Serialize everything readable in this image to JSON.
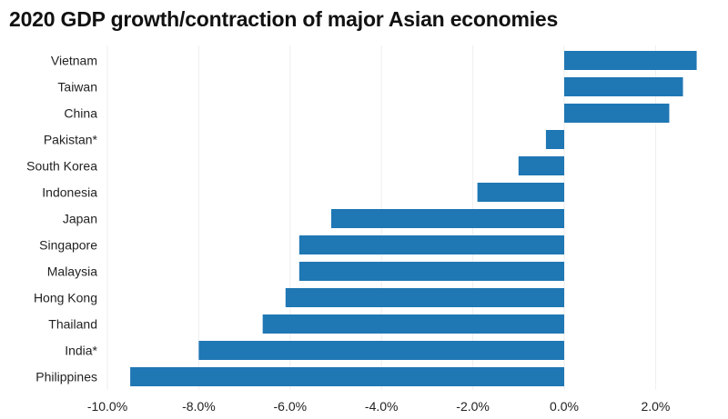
{
  "chart_data": {
    "type": "bar",
    "orientation": "horizontal",
    "title": "2020 GDP growth/contraction of major Asian economies",
    "xlabel": "",
    "ylabel": "",
    "categories": [
      "Vietnam",
      "Taiwan",
      "China",
      "Pakistan*",
      "South Korea",
      "Indonesia",
      "Japan",
      "Singapore",
      "Malaysia",
      "Hong Kong",
      "Thailand",
      "India*",
      "Philippines"
    ],
    "values": [
      2.9,
      2.6,
      2.3,
      -0.4,
      -1.0,
      -1.9,
      -5.1,
      -5.8,
      -5.8,
      -6.1,
      -6.6,
      -8.0,
      -9.5
    ],
    "xlim": [
      -10,
      3.5
    ],
    "x_ticks": [
      -10,
      -8,
      -6,
      -4,
      -2,
      0,
      2
    ],
    "x_tick_labels": [
      "-10.0%",
      "-8.0%",
      "-6.0%",
      "-4.0%",
      "-2.0%",
      "0.0%",
      "2.0%"
    ],
    "grid": "vertical",
    "bar_color": "#1f77b4",
    "grid_color": "#eeeeee"
  }
}
